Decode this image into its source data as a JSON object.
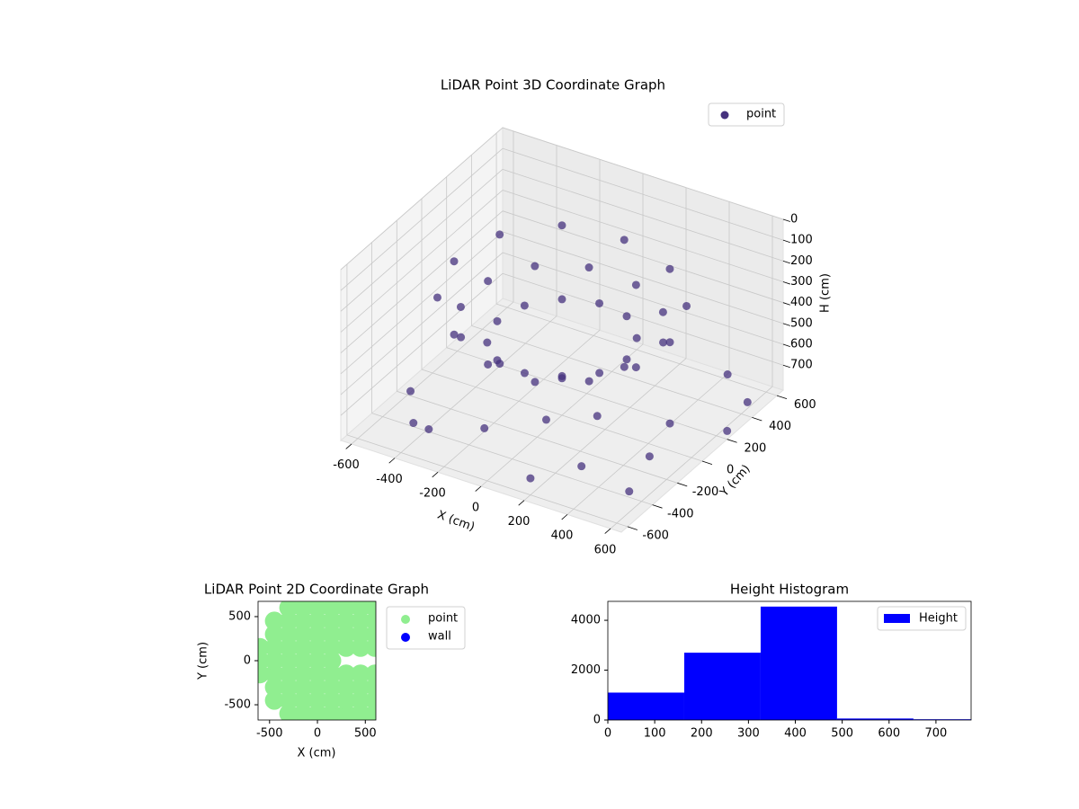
{
  "chart_data": [
    {
      "type": "scatter3d",
      "title": "LiDAR Point 3D Coordinate Graph",
      "xlabel": "X (cm)",
      "ylabel": "Y (cm)",
      "zlabel": "H (cm)",
      "xlim": [
        -650,
        650
      ],
      "ylim": [
        -650,
        650
      ],
      "zlim": [
        0,
        820
      ],
      "zinvert": true,
      "xticks": [
        -600,
        -400,
        -200,
        0,
        200,
        400,
        600
      ],
      "yticks": [
        -600,
        -400,
        -200,
        0,
        200,
        400,
        600
      ],
      "zticks": [
        0,
        100,
        200,
        300,
        400,
        500,
        600,
        700
      ],
      "grid": true,
      "legend": "upper right",
      "series": [
        {
          "name": "point",
          "color": "#46327e",
          "x": [
            500,
            433,
            250,
            0,
            -250,
            -433,
            -500,
            -433,
            -250,
            0,
            250,
            433,
            406,
            297,
            109,
            -109,
            -297,
            -406,
            -406,
            -297,
            -109,
            109,
            297,
            406,
            300,
            260,
            150,
            0,
            -150,
            -260,
            -300,
            -260,
            -150,
            0,
            150,
            260,
            600,
            -300,
            450,
            -500,
            200,
            650,
            550,
            -100,
            350,
            600,
            100,
            -400,
            500,
            250
          ],
          "y": [
            0,
            250,
            433,
            500,
            433,
            250,
            0,
            -250,
            -433,
            -500,
            -433,
            -250,
            109,
            297,
            406,
            406,
            297,
            109,
            -109,
            -297,
            -406,
            -406,
            -297,
            -109,
            0,
            150,
            260,
            300,
            260,
            150,
            0,
            -150,
            -260,
            -300,
            -260,
            -150,
            -500,
            -550,
            550,
            -350,
            -600,
            200,
            -250,
            -450,
            -450,
            450,
            -300,
            -500,
            0,
            -150
          ],
          "z": [
            300,
            280,
            260,
            240,
            220,
            230,
            250,
            270,
            290,
            310,
            320,
            310,
            390,
            380,
            370,
            360,
            360,
            370,
            380,
            390,
            400,
            410,
            400,
            395,
            450,
            440,
            430,
            440,
            450,
            460,
            470,
            480,
            470,
            460,
            455,
            450,
            720,
            700,
            760,
            690,
            740,
            780,
            700,
            680,
            710,
            790,
            650,
            730,
            690,
            660
          ]
        }
      ]
    },
    {
      "type": "scatter",
      "title": "LiDAR Point 2D Coordinate Graph",
      "xlabel": "X (cm)",
      "ylabel": "Y (cm)",
      "xlim": [
        -620,
        610
      ],
      "ylim": [
        -673,
        673
      ],
      "xticks": [
        -500,
        0,
        500
      ],
      "yticks": [
        -500,
        0,
        500
      ],
      "legend": "outside right",
      "series": [
        {
          "name": "point",
          "color": "#90ee90",
          "x": [
            -600,
            -600,
            -600,
            -450,
            -450,
            -450,
            -450,
            -450,
            -450,
            -450,
            -300,
            -300,
            -300,
            -300,
            -300,
            -300,
            -300,
            -300,
            -300,
            -150,
            -150,
            -150,
            -150,
            -150,
            -150,
            -150,
            -150,
            -150,
            0,
            0,
            0,
            0,
            0,
            0,
            0,
            0,
            0,
            150,
            150,
            150,
            150,
            150,
            150,
            150,
            150,
            150,
            300,
            300,
            300,
            300,
            300,
            300,
            300,
            300,
            450,
            450,
            450,
            450,
            450,
            450,
            450,
            450,
            600,
            600,
            600,
            600,
            600,
            600,
            600,
            600
          ],
          "y": [
            -150,
            0,
            150,
            -450,
            -300,
            -150,
            0,
            150,
            300,
            450,
            -600,
            -450,
            -300,
            -150,
            0,
            150,
            300,
            450,
            600,
            -600,
            -450,
            -300,
            -150,
            0,
            150,
            300,
            450,
            600,
            -600,
            -450,
            -300,
            -150,
            0,
            150,
            300,
            450,
            600,
            -600,
            -450,
            -300,
            -150,
            0,
            150,
            300,
            450,
            600,
            -600,
            -450,
            -300,
            -150,
            150,
            300,
            450,
            600,
            -600,
            -450,
            -300,
            -150,
            150,
            300,
            450,
            600,
            -600,
            -450,
            -300,
            -150,
            150,
            300,
            450,
            600
          ]
        },
        {
          "name": "wall",
          "color": "#0000ff",
          "x": [],
          "y": []
        }
      ]
    },
    {
      "type": "histogram",
      "title": "Height Histogram",
      "bins": [
        0,
        163,
        326,
        489,
        652,
        815
      ],
      "xlim": [
        0,
        775
      ],
      "ylim": [
        0,
        4760
      ],
      "xticks": [
        0,
        100,
        200,
        300,
        400,
        500,
        600,
        700
      ],
      "yticks": [
        0,
        2000,
        4000
      ],
      "legend": "upper right",
      "series": [
        {
          "name": "Height",
          "color": "#0000ff",
          "values": [
            1100,
            2700,
            4550,
            60,
            30
          ]
        }
      ]
    }
  ]
}
